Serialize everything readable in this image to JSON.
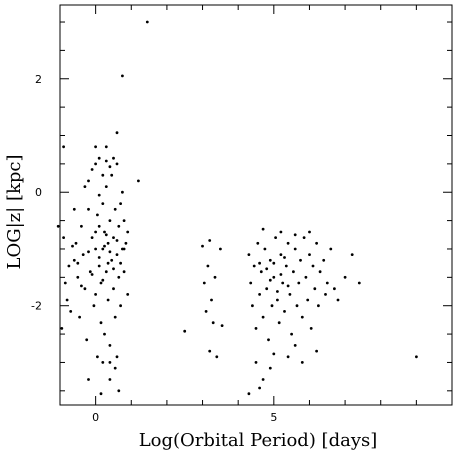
{
  "chart_data": {
    "type": "scatter",
    "xlabel": "Log(Orbital Period) [days]",
    "ylabel": "LOG|z| [kpc]",
    "xlim": [
      -1,
      10
    ],
    "ylim": [
      -3.75,
      3.3
    ],
    "xticks": [
      0,
      5
    ],
    "yticks": [
      2,
      0,
      -2
    ],
    "grid": false,
    "series": [
      {
        "points": [
          [
            -1.05,
            -0.6
          ],
          [
            -0.9,
            -0.8
          ],
          [
            -0.95,
            -2.4
          ],
          [
            -0.85,
            -1.6
          ],
          [
            -0.8,
            -1.9
          ],
          [
            -0.75,
            -1.3
          ],
          [
            -0.7,
            -2.1
          ],
          [
            -0.6,
            -1.2
          ],
          [
            -0.55,
            -0.9
          ],
          [
            -0.5,
            -1.5
          ],
          [
            -0.45,
            -2.2
          ],
          [
            -0.4,
            -0.6
          ],
          [
            -0.35,
            -1.1
          ],
          [
            -0.3,
            -1.7
          ],
          [
            -0.25,
            -2.6
          ],
          [
            -0.2,
            -0.3
          ],
          [
            -0.15,
            -1.4
          ],
          [
            -0.1,
            -0.8
          ],
          [
            -0.05,
            -2.0
          ],
          [
            0.0,
            -1.0
          ],
          [
            0.0,
            -1.8
          ],
          [
            0.05,
            -0.4
          ],
          [
            0.05,
            -2.9
          ],
          [
            0.1,
            -1.3
          ],
          [
            0.1,
            -0.6
          ],
          [
            0.15,
            -2.3
          ],
          [
            0.15,
            -1.6
          ],
          [
            0.2,
            -0.2
          ],
          [
            0.2,
            -1.0
          ],
          [
            0.25,
            -2.5
          ],
          [
            0.25,
            -0.7
          ],
          [
            0.3,
            -1.4
          ],
          [
            0.3,
            0.1
          ],
          [
            0.35,
            -0.9
          ],
          [
            0.35,
            -1.9
          ],
          [
            0.4,
            -0.5
          ],
          [
            0.4,
            -2.7
          ],
          [
            0.45,
            -1.2
          ],
          [
            0.45,
            0.3
          ],
          [
            0.5,
            -0.8
          ],
          [
            0.5,
            -1.7
          ],
          [
            0.55,
            -0.3
          ],
          [
            0.55,
            -2.2
          ],
          [
            0.6,
            -1.1
          ],
          [
            0.6,
            0.5
          ],
          [
            0.65,
            -0.6
          ],
          [
            0.65,
            -1.5
          ],
          [
            0.7,
            -2.0
          ],
          [
            0.7,
            -0.2
          ],
          [
            0.75,
            -1.0
          ],
          [
            0.75,
            0.0
          ],
          [
            0.8,
            -1.4
          ],
          [
            0.8,
            -0.5
          ],
          [
            0.85,
            -0.9
          ],
          [
            0.9,
            -1.8
          ],
          [
            0.9,
            -0.7
          ],
          [
            -0.3,
            0.1
          ],
          [
            -0.2,
            0.2
          ],
          [
            -0.1,
            0.4
          ],
          [
            0.0,
            0.5
          ],
          [
            0.1,
            0.6
          ],
          [
            0.2,
            0.3
          ],
          [
            0.3,
            0.55
          ],
          [
            0.4,
            0.45
          ],
          [
            0.5,
            0.6
          ],
          [
            -0.9,
            0.8
          ],
          [
            0.0,
            0.8
          ],
          [
            0.3,
            0.8
          ],
          [
            0.6,
            1.05
          ],
          [
            0.75,
            2.05
          ],
          [
            1.45,
            3.0
          ],
          [
            1.2,
            0.2
          ],
          [
            0.2,
            -3.0
          ],
          [
            0.4,
            -3.3
          ],
          [
            0.55,
            -3.1
          ],
          [
            0.65,
            -3.5
          ],
          [
            0.15,
            -3.55
          ],
          [
            -0.2,
            -3.3
          ],
          [
            0.1,
            -0.05
          ],
          [
            -0.6,
            -0.3
          ],
          [
            0.4,
            -3.0
          ],
          [
            0.6,
            -2.9
          ],
          [
            -0.65,
            -0.95
          ],
          [
            -0.5,
            -1.25
          ],
          [
            -0.4,
            -1.65
          ],
          [
            -0.2,
            -1.05
          ],
          [
            -0.1,
            -1.45
          ],
          [
            0.0,
            -0.7
          ],
          [
            0.1,
            -1.15
          ],
          [
            0.2,
            -1.55
          ],
          [
            0.3,
            -0.75
          ],
          [
            0.4,
            -1.05
          ],
          [
            0.5,
            -1.35
          ],
          [
            0.6,
            -0.85
          ],
          [
            0.7,
            -1.25
          ],
          [
            0.8,
            -1.0
          ],
          [
            0.25,
            -0.95
          ],
          [
            0.35,
            -1.25
          ],
          [
            3.0,
            -0.95
          ],
          [
            3.05,
            -1.6
          ],
          [
            3.1,
            -2.1
          ],
          [
            3.15,
            -1.3
          ],
          [
            3.2,
            -0.85
          ],
          [
            3.25,
            -1.9
          ],
          [
            3.3,
            -2.3
          ],
          [
            3.35,
            -1.5
          ],
          [
            3.4,
            -2.9
          ],
          [
            3.5,
            -1.0
          ],
          [
            3.55,
            -2.35
          ],
          [
            3.2,
            -2.8
          ],
          [
            2.5,
            -2.45
          ],
          [
            4.3,
            -1.1
          ],
          [
            4.35,
            -1.6
          ],
          [
            4.4,
            -2.0
          ],
          [
            4.45,
            -1.3
          ],
          [
            4.5,
            -2.4
          ],
          [
            4.55,
            -0.9
          ],
          [
            4.6,
            -1.8
          ],
          [
            4.65,
            -1.4
          ],
          [
            4.7,
            -2.2
          ],
          [
            4.75,
            -1.0
          ],
          [
            4.8,
            -1.7
          ],
          [
            4.85,
            -2.6
          ],
          [
            4.9,
            -1.2
          ],
          [
            4.95,
            -2.0
          ],
          [
            5.0,
            -1.5
          ],
          [
            5.05,
            -0.8
          ],
          [
            5.1,
            -1.9
          ],
          [
            5.15,
            -2.3
          ],
          [
            5.2,
            -1.1
          ],
          [
            5.25,
            -1.6
          ],
          [
            5.3,
            -2.1
          ],
          [
            5.35,
            -1.3
          ],
          [
            5.4,
            -0.9
          ],
          [
            5.45,
            -1.8
          ],
          [
            5.5,
            -2.5
          ],
          [
            5.55,
            -1.4
          ],
          [
            5.6,
            -1.0
          ],
          [
            5.65,
            -2.0
          ],
          [
            5.7,
            -1.6
          ],
          [
            5.75,
            -1.2
          ],
          [
            5.8,
            -2.2
          ],
          [
            5.85,
            -0.8
          ],
          [
            5.9,
            -1.5
          ],
          [
            5.95,
            -1.9
          ],
          [
            6.0,
            -1.1
          ],
          [
            6.05,
            -2.4
          ],
          [
            6.1,
            -1.3
          ],
          [
            6.15,
            -1.7
          ],
          [
            6.2,
            -0.9
          ],
          [
            6.25,
            -2.0
          ],
          [
            6.3,
            -1.4
          ],
          [
            6.4,
            -1.2
          ],
          [
            6.45,
            -1.8
          ],
          [
            6.5,
            -1.6
          ],
          [
            6.6,
            -1.0
          ],
          [
            6.7,
            -1.7
          ],
          [
            6.8,
            -1.9
          ],
          [
            7.0,
            -1.5
          ],
          [
            7.2,
            -1.1
          ],
          [
            7.4,
            -1.6
          ],
          [
            4.5,
            -3.0
          ],
          [
            4.7,
            -3.3
          ],
          [
            4.9,
            -3.1
          ],
          [
            5.0,
            -2.85
          ],
          [
            4.3,
            -3.55
          ],
          [
            4.6,
            -3.45
          ],
          [
            5.4,
            -2.9
          ],
          [
            5.6,
            -2.7
          ],
          [
            5.8,
            -3.0
          ],
          [
            6.2,
            -2.8
          ],
          [
            4.7,
            -0.65
          ],
          [
            5.2,
            -0.7
          ],
          [
            5.6,
            -0.75
          ],
          [
            6.0,
            -0.7
          ],
          [
            5.0,
            -1.25
          ],
          [
            5.2,
            -1.45
          ],
          [
            5.4,
            -1.65
          ],
          [
            4.8,
            -1.35
          ],
          [
            4.9,
            -1.55
          ],
          [
            5.1,
            -1.75
          ],
          [
            5.3,
            -1.15
          ],
          [
            4.6,
            -1.25
          ],
          [
            9.0,
            -2.9
          ]
        ]
      }
    ]
  }
}
